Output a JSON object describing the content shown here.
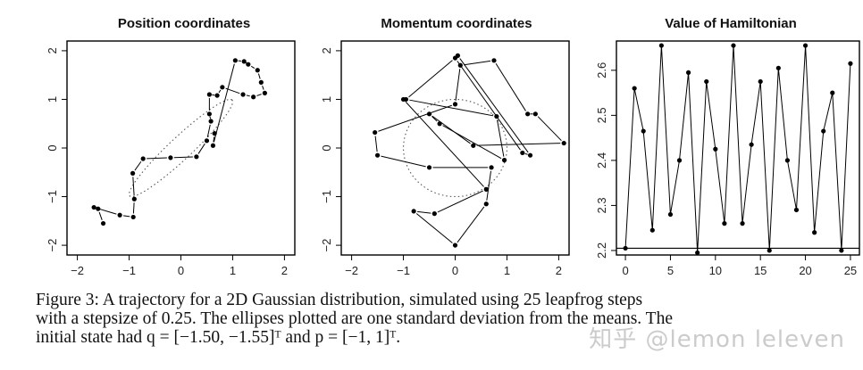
{
  "chart_data": [
    {
      "type": "scatter",
      "title": "Position coordinates",
      "xticks": [
        "-2",
        "-1",
        "0",
        "1",
        "2"
      ],
      "yticks": [
        "-2",
        "-1",
        "0",
        "1",
        "2"
      ],
      "xlim": [
        -2.2,
        2.2
      ],
      "ylim": [
        -2.2,
        2.2
      ],
      "ellipse": {
        "cx": 0,
        "cy": 0,
        "sx": 1,
        "sy": 1,
        "rho": 0.95,
        "style": "dotted"
      },
      "points": [
        [
          -1.5,
          -1.55
        ],
        [
          -1.6,
          -1.25
        ],
        [
          -1.68,
          -1.22
        ],
        [
          -1.18,
          -1.38
        ],
        [
          -0.92,
          -1.42
        ],
        [
          -0.9,
          -1.05
        ],
        [
          -0.93,
          -0.52
        ],
        [
          -0.73,
          -0.22
        ],
        [
          -0.2,
          -0.2
        ],
        [
          0.3,
          -0.18
        ],
        [
          0.5,
          0.15
        ],
        [
          0.58,
          0.55
        ],
        [
          0.55,
          0.7
        ],
        [
          0.55,
          1.1
        ],
        [
          0.7,
          1.08
        ],
        [
          0.8,
          1.25
        ],
        [
          1.2,
          1.1
        ],
        [
          1.4,
          1.05
        ],
        [
          1.62,
          1.13
        ],
        [
          1.55,
          1.35
        ],
        [
          1.48,
          1.6
        ],
        [
          1.3,
          1.72
        ],
        [
          1.22,
          1.78
        ],
        [
          1.05,
          1.8
        ],
        [
          0.62,
          0.05
        ],
        [
          0.65,
          0.3
        ]
      ]
    },
    {
      "type": "scatter",
      "title": "Momentum coordinates",
      "xticks": [
        "-2",
        "-1",
        "0",
        "1",
        "2"
      ],
      "yticks": [
        "-2",
        "-1",
        "0",
        "1",
        "2"
      ],
      "xlim": [
        -2.2,
        2.2
      ],
      "ylim": [
        -2.2,
        2.2
      ],
      "ellipse": {
        "cx": 0,
        "cy": 0,
        "sx": 1,
        "sy": 1,
        "rho": 0.0,
        "style": "dotted"
      },
      "points": [
        [
          -1.0,
          1.0
        ],
        [
          0.6,
          -0.85
        ],
        [
          -0.4,
          -1.35
        ],
        [
          -0.8,
          -1.3
        ],
        [
          0.0,
          -2.0
        ],
        [
          0.6,
          -1.15
        ],
        [
          0.7,
          -0.4
        ],
        [
          -0.5,
          -0.4
        ],
        [
          -1.5,
          -0.15
        ],
        [
          -1.55,
          0.32
        ],
        [
          0.0,
          0.9
        ],
        [
          0.1,
          1.7
        ],
        [
          0.75,
          1.8
        ],
        [
          1.4,
          0.7
        ],
        [
          1.55,
          0.7
        ],
        [
          2.1,
          0.1
        ],
        [
          0.35,
          0.05
        ],
        [
          -0.5,
          0.7
        ],
        [
          -0.3,
          0.5
        ],
        [
          0.95,
          -0.25
        ],
        [
          0.8,
          0.65
        ],
        [
          -0.95,
          1.0
        ],
        [
          0.0,
          1.85
        ],
        [
          1.3,
          -0.1
        ],
        [
          1.45,
          -0.15
        ],
        [
          0.05,
          1.9
        ]
      ]
    },
    {
      "type": "line",
      "title": "Value of Hamiltonian",
      "xticks": [
        "0",
        "5",
        "10",
        "15",
        "20",
        "25"
      ],
      "yticks": [
        "2.2",
        "2.3",
        "2.4",
        "2.5",
        "2.6"
      ],
      "xlim": [
        -1,
        26
      ],
      "ylim": [
        2.19,
        2.665
      ],
      "hline": 2.205,
      "x": [
        0,
        1,
        2,
        3,
        4,
        5,
        6,
        7,
        8,
        9,
        10,
        11,
        12,
        13,
        14,
        15,
        16,
        17,
        18,
        19,
        20,
        21,
        22,
        23,
        24,
        25
      ],
      "y": [
        2.205,
        2.56,
        2.465,
        2.245,
        2.655,
        2.28,
        2.4,
        2.595,
        2.195,
        2.575,
        2.425,
        2.26,
        2.655,
        2.26,
        2.435,
        2.575,
        2.2,
        2.605,
        2.4,
        2.29,
        2.655,
        2.24,
        2.465,
        2.55,
        2.2,
        2.615
      ]
    }
  ],
  "caption": {
    "line1": "Figure 3:  A trajectory for a 2D Gaussian distribution, simulated using 25 leapfrog steps",
    "line2": "with a stepsize of 0.25.  The ellipses plotted are one standard deviation from the means.  The",
    "line3": "initial state had q = [−1.50, −1.55]ᵀ and p = [−1, 1]ᵀ."
  },
  "watermark": "知乎 @lemon leleven"
}
